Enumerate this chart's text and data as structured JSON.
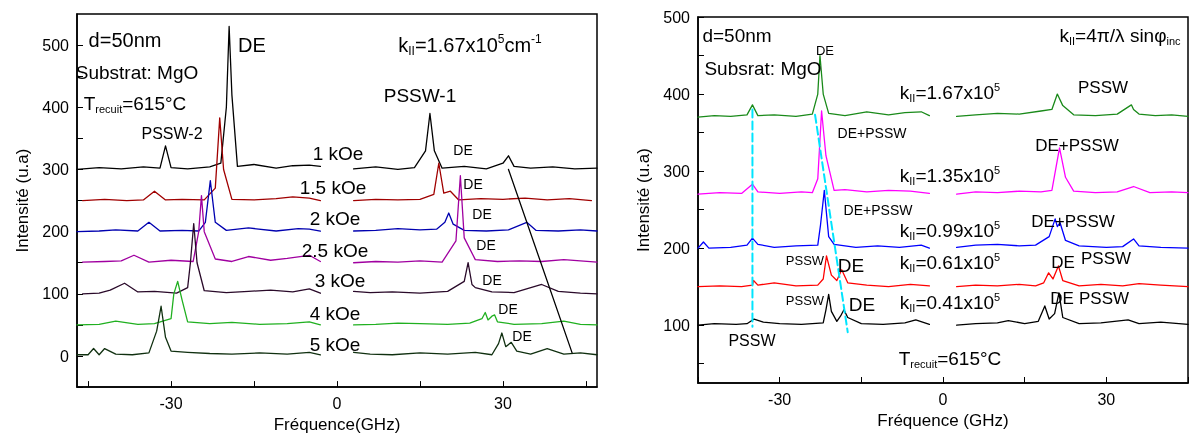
{
  "chart_data": [
    {
      "type": "line",
      "xlabel": "Fréquence(GHz)",
      "ylabel": "Intensité (u.a)",
      "xlim": [
        -47,
        47
      ],
      "ylim": [
        -50,
        550
      ],
      "xticks": [
        {
          "value": -45,
          "label": null
        },
        -30,
        {
          "value": -15,
          "label": null
        },
        0,
        {
          "value": 15,
          "label": null
        },
        30,
        {
          "value": 45,
          "label": null
        }
      ],
      "yticks": [
        {
          "value": -50,
          "label": null
        },
        0,
        {
          "value": 50,
          "label": null
        },
        100,
        {
          "value": 150,
          "label": null
        },
        200,
        {
          "value": 250,
          "label": null
        },
        300,
        {
          "value": 350,
          "label": null
        },
        400,
        {
          "value": 450,
          "label": null
        },
        500
      ],
      "grid": false,
      "marker": "none",
      "line_style": "solid",
      "series": [
        {
          "color": "#000000",
          "x": [
            -47,
            -43,
            -39,
            -35,
            -32,
            -31,
            -30,
            -27,
            -23,
            -21,
            -20,
            -19.5,
            -19,
            -18,
            -15,
            -11,
            -8,
            -5,
            -3,
            0,
            3,
            7,
            11,
            14,
            16,
            16.8,
            17.6,
            19,
            23,
            27,
            30,
            31,
            32,
            35,
            39,
            43,
            47
          ],
          "values": [
            300,
            303,
            301,
            304,
            302,
            338,
            303,
            301,
            304,
            310,
            400,
            530,
            420,
            305,
            308,
            302,
            306,
            307,
            305,
            null,
            301,
            304,
            300,
            303,
            330,
            390,
            330,
            302,
            305,
            301,
            310,
            322,
            305,
            302,
            304,
            301,
            302
          ]
        },
        {
          "color": "#a00000",
          "x": [
            -46,
            -42,
            -38,
            -35,
            -33,
            -31,
            -28,
            -24,
            -22,
            -21.2,
            -20.5,
            -19,
            -15,
            -11,
            -8,
            -5,
            -3,
            0,
            3,
            7,
            11,
            15,
            17.5,
            18.4,
            19.3,
            20.5,
            22,
            26,
            30,
            34,
            38,
            42,
            46
          ],
          "values": [
            250,
            252,
            250,
            251,
            265,
            251,
            252,
            251,
            270,
            383,
            300,
            252,
            251,
            253,
            256,
            254,
            250,
            null,
            250,
            252,
            251,
            252,
            260,
            310,
            262,
            265,
            251,
            253,
            252,
            254,
            251,
            253,
            250
          ]
        },
        {
          "color": "#0000b0",
          "x": [
            -47,
            -43,
            -40,
            -36,
            -34,
            -32,
            -28,
            -25,
            -23.8,
            -22.9,
            -22,
            -20,
            -16,
            -11,
            -7,
            -5,
            -3,
            0,
            3,
            7,
            11,
            15,
            18,
            19.5,
            20.2,
            21,
            23,
            27,
            31,
            34.3,
            36,
            40,
            44,
            47
          ],
          "values": [
            200,
            201,
            203,
            201,
            215,
            201,
            202,
            201,
            215,
            282,
            215,
            202,
            206,
            201,
            205,
            204,
            201,
            null,
            201,
            202,
            205,
            203,
            204,
            215,
            230,
            212,
            202,
            201,
            203,
            215,
            202,
            201,
            203,
            201
          ]
        },
        {
          "color": "#a000a0",
          "x": [
            -46,
            -42,
            -39,
            -36.7,
            -34,
            -30,
            -26,
            -25,
            -24.5,
            -24,
            -22,
            -19,
            -16,
            -12,
            -9,
            -5,
            -3,
            0,
            3,
            7,
            11,
            15,
            19,
            21.5,
            22.3,
            23,
            25,
            29,
            33,
            37,
            41,
            44,
            47
          ],
          "values": [
            151,
            152,
            153,
            162,
            151,
            154,
            152,
            200,
            258,
            200,
            156,
            152,
            160,
            154,
            157,
            162,
            152,
            null,
            150,
            152,
            151,
            153,
            151,
            185,
            290,
            190,
            155,
            152,
            153,
            152,
            155,
            153,
            151
          ]
        },
        {
          "color": "#2a0a2a",
          "x": [
            -46,
            -43,
            -41,
            -38.4,
            -36,
            -33,
            -29,
            -27,
            -26.5,
            -25.9,
            -25.3,
            -24,
            -20,
            -16,
            -12,
            -8,
            -5,
            -3,
            0,
            3,
            6,
            10,
            15,
            20,
            23,
            23.7,
            24.4,
            25,
            28,
            32,
            37,
            40,
            44,
            47
          ],
          "values": [
            100,
            101,
            106,
            117,
            103,
            104,
            101,
            110,
            150,
            213,
            150,
            105,
            102,
            104,
            106,
            103,
            108,
            101,
            null,
            104,
            102,
            103,
            101,
            104,
            120,
            150,
            115,
            110,
            103,
            102,
            115,
            104,
            101,
            100
          ]
        },
        {
          "color": "#20b020",
          "x": [
            -47,
            -43,
            -40,
            -36,
            -33,
            -30,
            -29.5,
            -28.8,
            -28,
            -27,
            -23,
            -19,
            -14,
            -9,
            -5,
            -3,
            0,
            3,
            7,
            11,
            15,
            20,
            24,
            26.2,
            26.8,
            27.3,
            28,
            28.5,
            29,
            32,
            37,
            41,
            44,
            47
          ],
          "values": [
            50,
            51,
            56,
            51,
            52,
            60,
            100,
            120,
            90,
            55,
            52,
            54,
            51,
            52,
            55,
            50,
            null,
            50,
            51,
            53,
            52,
            51,
            53,
            60,
            70,
            58,
            64,
            66,
            55,
            51,
            52,
            56,
            51,
            50
          ]
        },
        {
          "color": "#103010",
          "x": [
            -47,
            -45,
            -44,
            -43,
            -42,
            -40,
            -37,
            -34,
            -32.6,
            -31.8,
            -31,
            -30,
            -27,
            -23,
            -19,
            -14,
            -9,
            -5,
            -3,
            0,
            3,
            6,
            10,
            15,
            20,
            25,
            28,
            29.2,
            29.8,
            30.5,
            31.5,
            32.5,
            35,
            38,
            41,
            44,
            47
          ],
          "values": [
            2,
            2,
            12,
            2,
            12,
            3,
            2,
            5,
            40,
            80,
            30,
            8,
            6,
            4,
            3,
            5,
            3,
            6,
            2,
            null,
            6,
            3,
            2,
            5,
            3,
            6,
            2,
            20,
            37,
            15,
            22,
            8,
            3,
            12,
            3,
            5,
            2
          ]
        },
        {
          "color": "#000000",
          "x": [
            31,
            42.5
          ],
          "values": [
            300,
            5
          ]
        }
      ],
      "annotations": [
        "d=50nm",
        "DE",
        "k$_{II}$=1.67x10$^{5}$cm$^{-1}$",
        "Substrat: MgO",
        "T$_{recuit}$=615°C",
        "PSSW-1",
        "PSSW-2",
        "1 kOe",
        "DE",
        "1.5 kOe",
        "DE",
        "2 kOe",
        "DE",
        "2.5 kOe",
        "DE",
        "3 kOe",
        "DE",
        "4 kOe",
        "DE",
        "5 kOe",
        "DE"
      ]
    },
    {
      "type": "line",
      "xlabel": "Fréquence (GHz)",
      "ylabel": "Intensité (u.a)",
      "xlim": [
        -45,
        45
      ],
      "ylim": [
        25,
        500
      ],
      "xticks": [
        {
          "value": -45,
          "label": null
        },
        -30,
        {
          "value": -15,
          "label": null
        },
        0,
        {
          "value": 15,
          "label": null
        },
        30,
        {
          "value": 45,
          "label": null
        }
      ],
      "yticks": [
        {
          "value": 50,
          "label": null
        },
        100,
        {
          "value": 150,
          "label": null
        },
        200,
        {
          "value": 250,
          "label": null
        },
        300,
        {
          "value": 350,
          "label": null
        },
        400,
        {
          "value": 450,
          "label": null
        },
        500
      ],
      "grid": false,
      "marker": "none",
      "line_style": "solid",
      "series": [
        {
          "color": "#1a8a1a",
          "x": [
            -45,
            -42,
            -39,
            -36,
            -35,
            -34,
            -31,
            -27,
            -24,
            -23,
            -22.6,
            -22,
            -21,
            -18,
            -14,
            -10,
            -7,
            -4,
            -2.5,
            0,
            2.5,
            6,
            10,
            14,
            18,
            20,
            21,
            22,
            24,
            28,
            32,
            34.6,
            35,
            36,
            39,
            42,
            45
          ],
          "values": [
            370,
            372,
            371,
            373,
            386,
            372,
            373,
            371,
            374,
            400,
            450,
            400,
            375,
            372,
            377,
            373,
            376,
            377,
            372,
            null,
            371,
            373,
            375,
            374,
            378,
            380,
            400,
            385,
            373,
            372,
            374,
            386,
            380,
            374,
            372,
            373,
            371
          ]
        },
        {
          "color": "#ff00ff",
          "x": [
            -45,
            -41,
            -37,
            -35,
            -34,
            -30,
            -26,
            -24,
            -23,
            -22.3,
            -21.5,
            -20,
            -18,
            -14,
            -10,
            -6,
            -2.5,
            0,
            2.5,
            6,
            10,
            14,
            18,
            20,
            21.4,
            22.5,
            24,
            28,
            32,
            35,
            38,
            42,
            45
          ],
          "values": [
            270,
            272,
            271,
            283,
            273,
            271,
            273,
            272,
            290,
            378,
            320,
            275,
            276,
            273,
            275,
            274,
            271,
            null,
            270,
            273,
            272,
            274,
            273,
            275,
            330,
            292,
            274,
            272,
            273,
            280,
            272,
            273,
            272
          ]
        },
        {
          "color": "#0000ff",
          "x": [
            -45,
            -44,
            -43,
            -39,
            -36,
            -35,
            -34,
            -31,
            -27,
            -23,
            -22.5,
            -21.8,
            -21,
            -20,
            -16,
            -12,
            -8,
            -4,
            -2.5,
            0,
            2.5,
            6,
            10,
            14,
            17,
            19.5,
            20.6,
            21,
            21.5,
            22.5,
            25,
            30,
            33,
            35,
            36,
            40,
            45
          ],
          "values": [
            200,
            208,
            200,
            201,
            204,
            213,
            205,
            201,
            203,
            204,
            230,
            275,
            215,
            205,
            201,
            203,
            201,
            204,
            200,
            null,
            201,
            204,
            205,
            203,
            204,
            215,
            238,
            228,
            233,
            210,
            203,
            201,
            202,
            212,
            203,
            201,
            200
          ]
        },
        {
          "color": "#ff0000",
          "x": [
            -45,
            -41,
            -37,
            -35,
            -34.8,
            -34,
            -31,
            -27,
            -23,
            -22,
            -21.4,
            -20.5,
            -19.5,
            -18.6,
            -17.5,
            -14,
            -10,
            -6,
            -2.5,
            0,
            2.5,
            6,
            10,
            14,
            17,
            18.5,
            19.4,
            20.2,
            21.2,
            22,
            25,
            29,
            33,
            36,
            40,
            45
          ],
          "values": [
            150,
            151,
            150,
            152,
            158,
            152,
            155,
            151,
            152,
            160,
            190,
            165,
            158,
            172,
            155,
            152,
            150,
            153,
            151,
            null,
            150,
            152,
            151,
            153,
            151,
            155,
            168,
            160,
            177,
            158,
            151,
            153,
            151,
            154,
            152,
            150
          ]
        },
        {
          "color": "#000000",
          "x": [
            -45,
            -42,
            -38,
            -36,
            -34.7,
            -33,
            -30,
            -26,
            -22,
            -21.5,
            -21,
            -20.5,
            -19.5,
            -18.8,
            -18.2,
            -17.5,
            -15,
            -11,
            -7,
            -5,
            -2.5,
            0,
            2.5,
            6,
            10,
            12,
            15,
            17.5,
            18.7,
            19.5,
            20.5,
            21.3,
            22,
            25,
            29,
            34,
            36,
            40,
            45
          ],
          "values": [
            100,
            102,
            101,
            102,
            108,
            104,
            102,
            101,
            103,
            120,
            140,
            118,
            105,
            112,
            120,
            110,
            102,
            101,
            103,
            107,
            101,
            null,
            100,
            102,
            103,
            106,
            102,
            105,
            125,
            108,
            115,
            142,
            110,
            102,
            103,
            107,
            102,
            104,
            101
          ]
        },
        {
          "color": "#00e5ff",
          "line_style": "dashed",
          "x": [
            -35,
            -35
          ],
          "values": [
            380,
            98
          ]
        },
        {
          "color": "#00e5ff",
          "line_style": "dashed",
          "x": [
            -23.5,
            -17.5
          ],
          "values": [
            373,
            91
          ]
        }
      ],
      "annotations": [
        "d=50nm",
        "DE",
        "Subsrat: MgO",
        "k$_{II}$=4π/λ sinφ$_{inc}$",
        "k$_{II}$=1.67x10$^{5}$",
        "PSSW",
        "DE+PSSW",
        "DE+PSSW",
        "k$_{II}$=1.35x10$^{5}$",
        "DE+PSSW",
        "DE+PSSW",
        "k$_{II}$=0.99x10$^{5}$",
        "PSSW",
        "DE",
        "k$_{II}$=0.61x10$^{5}$",
        "DE",
        "PSSW",
        "PSSW",
        "DE",
        "k$_{II}$=0.41x10$^{5}$",
        "DE",
        "PSSW",
        "PSSW",
        "T$_{recuit}$=615°C"
      ]
    }
  ]
}
